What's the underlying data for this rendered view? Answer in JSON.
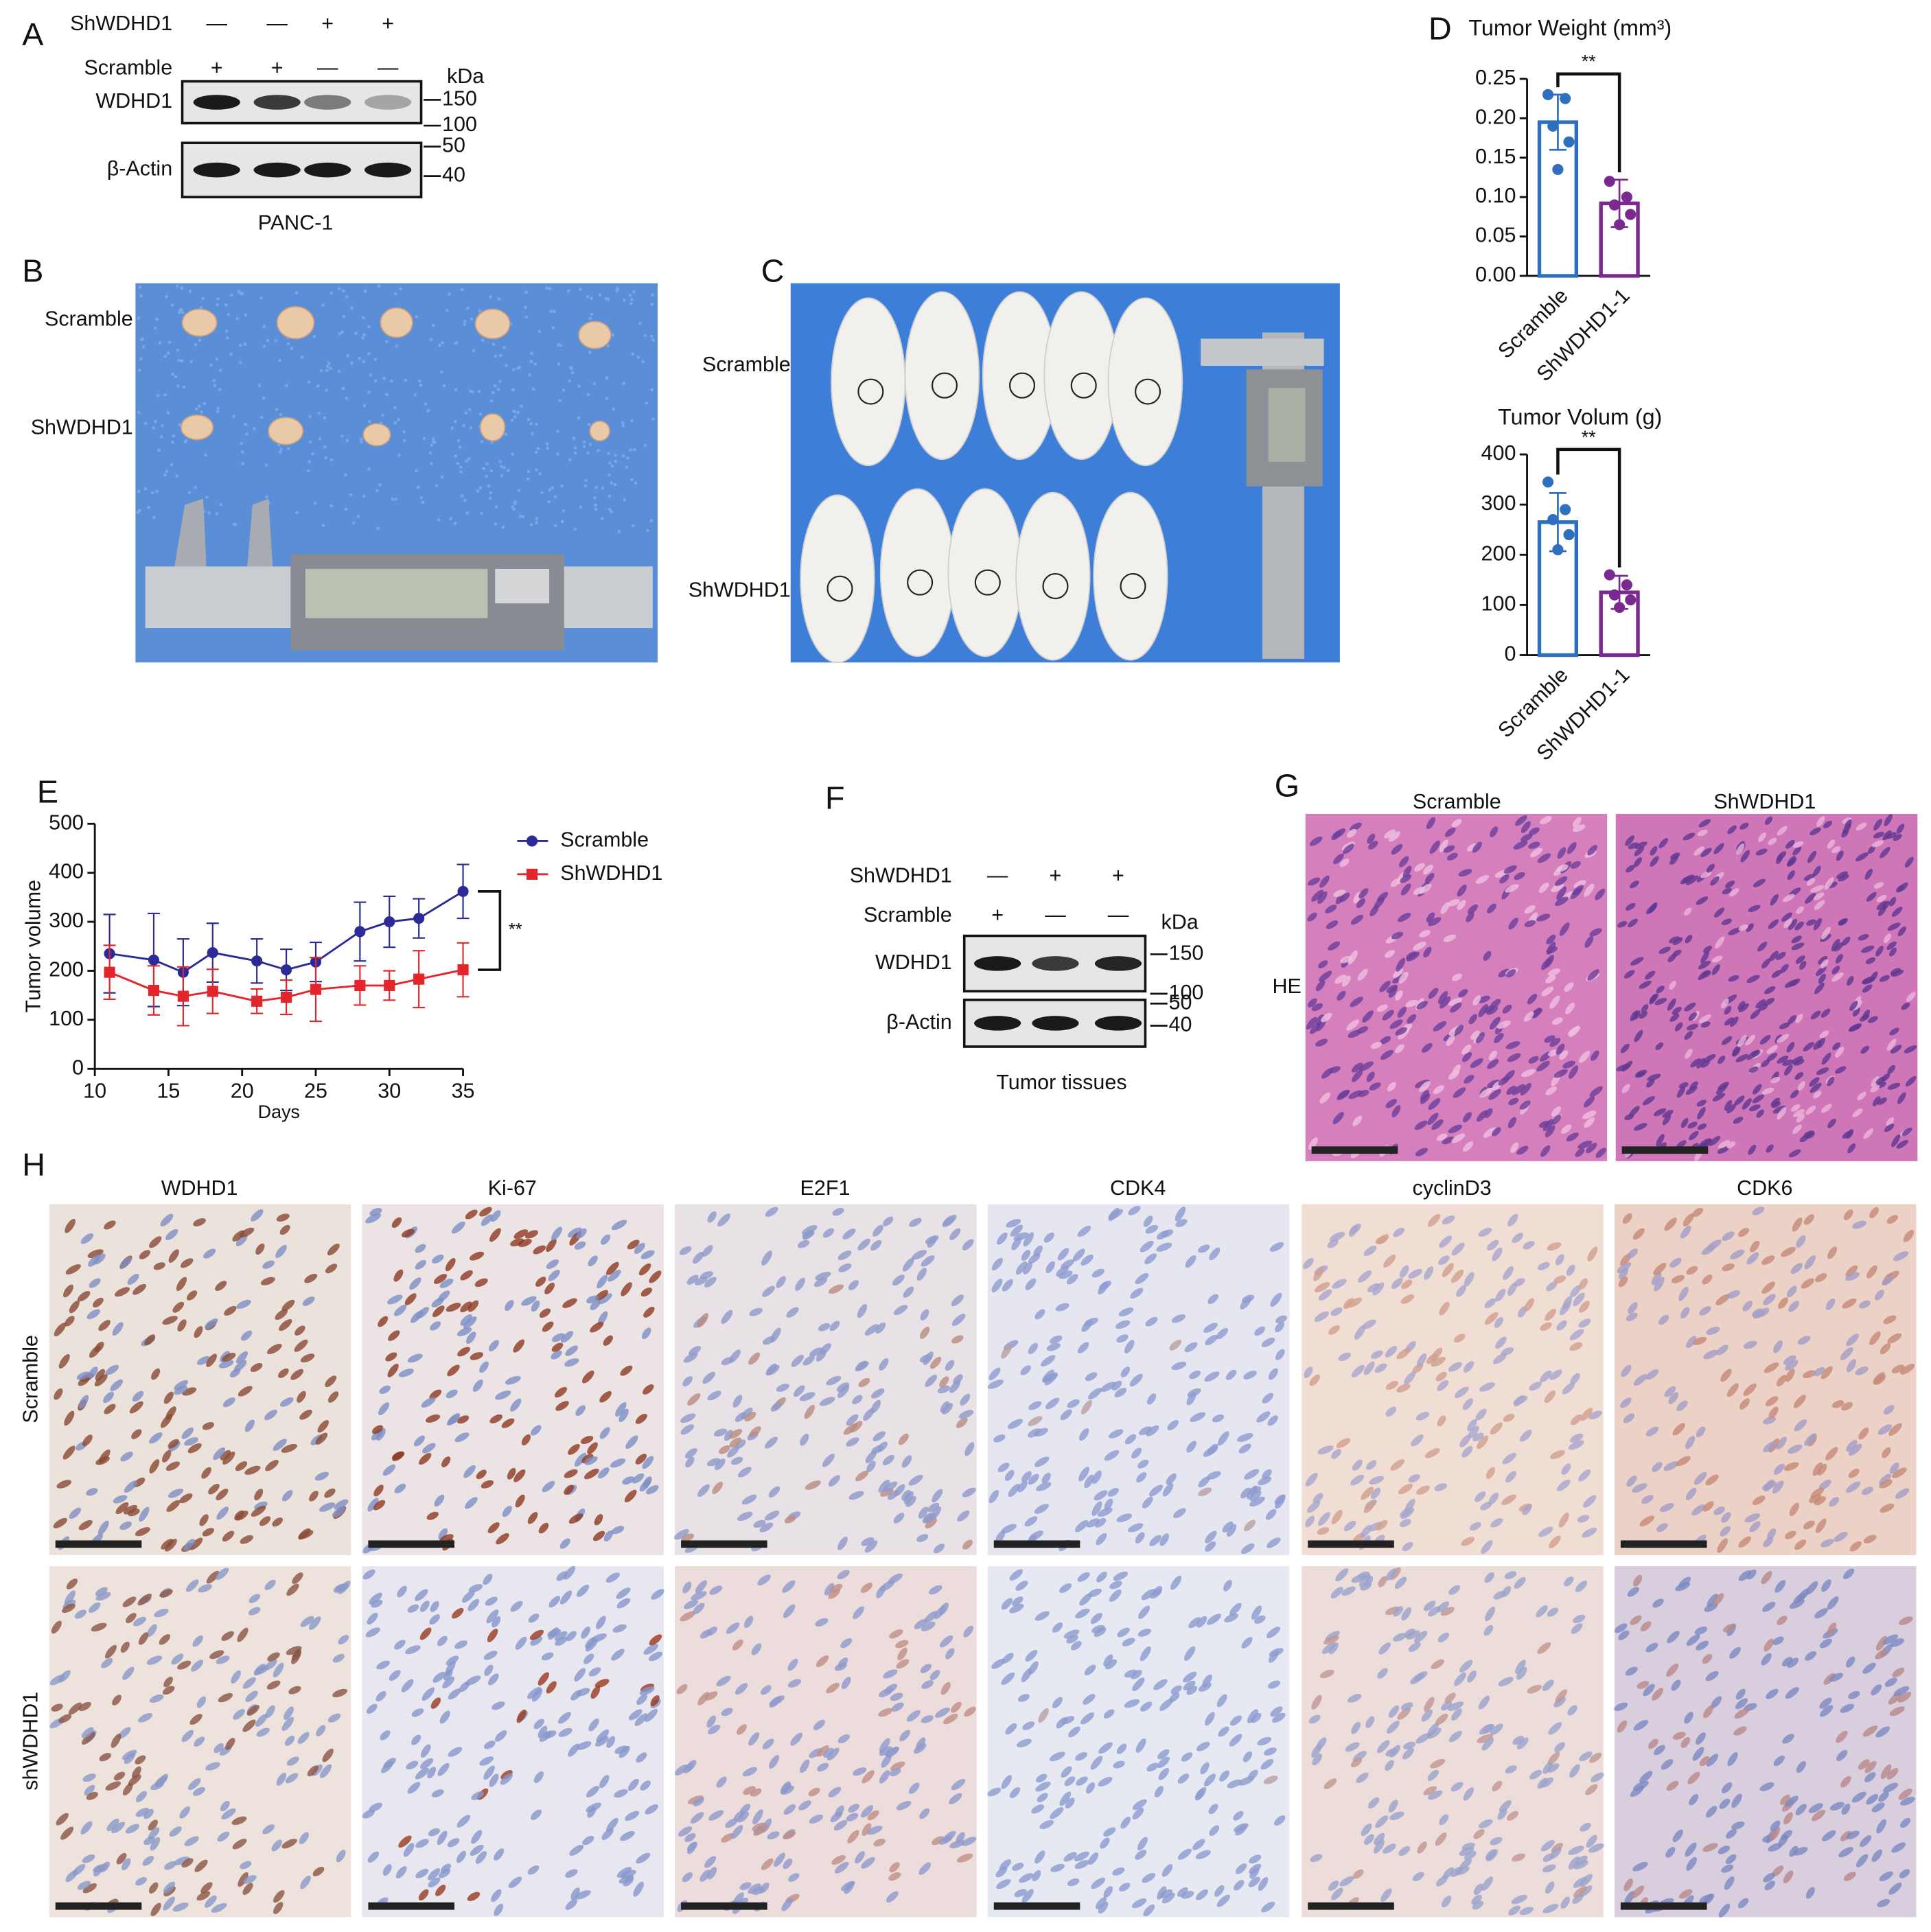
{
  "panel_labels": [
    "A",
    "B",
    "C",
    "D",
    "E",
    "F",
    "G",
    "H"
  ],
  "panel_a": {
    "rows": [
      {
        "label": "ShWDHD1",
        "signs": [
          "—",
          "—",
          "+",
          "+"
        ]
      },
      {
        "label": "Scramble",
        "signs": [
          "+",
          "+",
          "—",
          "—"
        ]
      }
    ],
    "blots": [
      "WDHD1",
      "β-Actin"
    ],
    "unit": "kDa",
    "markers": [
      150,
      100,
      50,
      40
    ],
    "caption": "PANC-1"
  },
  "panel_b": {
    "row_labels": [
      "Scramble",
      "ShWDHD1"
    ]
  },
  "panel_c": {
    "row_labels": [
      "Scramble",
      "ShWDHD1"
    ]
  },
  "chart_data": [
    {
      "type": "bar",
      "title": "Tumor Weight (mm³)",
      "categories": [
        "Scramble",
        "ShWDHD1-1"
      ],
      "values": [
        0.195,
        0.092
      ],
      "errors": [
        0.035,
        0.03
      ],
      "points": [
        [
          0.23,
          0.225,
          0.19,
          0.17,
          0.135
        ],
        [
          0.12,
          0.1,
          0.09,
          0.078,
          0.065
        ]
      ],
      "colors": [
        "#2f6fc0",
        "#7a2a8e"
      ],
      "ylim": [
        0,
        0.25
      ],
      "yticks": [
        {
          "value": 0,
          "label": "0.00"
        },
        {
          "value": 0.05,
          "label": "0.05"
        },
        {
          "value": 0.1,
          "label": "0.10"
        },
        {
          "value": 0.15,
          "label": "0.15"
        },
        {
          "value": 0.2,
          "label": "0.20"
        },
        {
          "value": 0.25,
          "label": "0.25"
        }
      ],
      "annotation": "**"
    },
    {
      "type": "bar",
      "title": "Tumor Volum (g)",
      "categories": [
        "Scramble",
        "ShWDHD1-1"
      ],
      "values": [
        265,
        125
      ],
      "errors": [
        58,
        33
      ],
      "points": [
        [
          345,
          290,
          270,
          240,
          210
        ],
        [
          160,
          140,
          120,
          110,
          95
        ]
      ],
      "colors": [
        "#2f6fc0",
        "#7a2a8e"
      ],
      "ylim": [
        0,
        400
      ],
      "yticks": [
        0,
        100,
        200,
        300,
        400
      ],
      "annotation": "**"
    },
    {
      "type": "line",
      "ylabel": "Tumor volume",
      "xlabel": "Days",
      "x": [
        11,
        14,
        16,
        18,
        21,
        23,
        25,
        28,
        30,
        32,
        35
      ],
      "series": [
        {
          "name": "Scramble",
          "color": "#2b2a96",
          "marker": "circle",
          "values": [
            235,
            222,
            197,
            237,
            220,
            202,
            218,
            280,
            300,
            307,
            362
          ],
          "errors": [
            80,
            95,
            68,
            60,
            45,
            42,
            40,
            60,
            52,
            40,
            55
          ]
        },
        {
          "name": "ShWDHD1",
          "color": "#e3262b",
          "marker": "square",
          "values": [
            197,
            160,
            148,
            158,
            138,
            146,
            162,
            170,
            170,
            183,
            202
          ],
          "errors": [
            55,
            50,
            60,
            45,
            25,
            35,
            65,
            40,
            30,
            58,
            55
          ]
        }
      ],
      "xlim": [
        10,
        35
      ],
      "xticks": [
        10,
        15,
        20,
        25,
        30,
        35
      ],
      "ylim": [
        0,
        500
      ],
      "yticks": [
        0,
        100,
        200,
        300,
        400,
        500
      ],
      "annotation": "**"
    }
  ],
  "panel_f": {
    "rows": [
      {
        "label": "ShWDHD1",
        "signs": [
          "—",
          "+",
          "+"
        ]
      },
      {
        "label": "Scramble",
        "signs": [
          "+",
          "—",
          "—"
        ]
      }
    ],
    "blots": [
      "WDHD1",
      "β-Actin"
    ],
    "unit": "kDa",
    "markers": [
      150,
      100,
      50,
      40
    ],
    "caption": "Tumor tissues"
  },
  "panel_g": {
    "columns": [
      "Scramble",
      "ShWDHD1"
    ],
    "row_label": "HE"
  },
  "panel_h": {
    "columns": [
      "WDHD1",
      "Ki-67",
      "E2F1",
      "CDK4",
      "cyclinD3",
      "CDK6"
    ],
    "rows": [
      "Scramble",
      "shWDHD1"
    ]
  }
}
